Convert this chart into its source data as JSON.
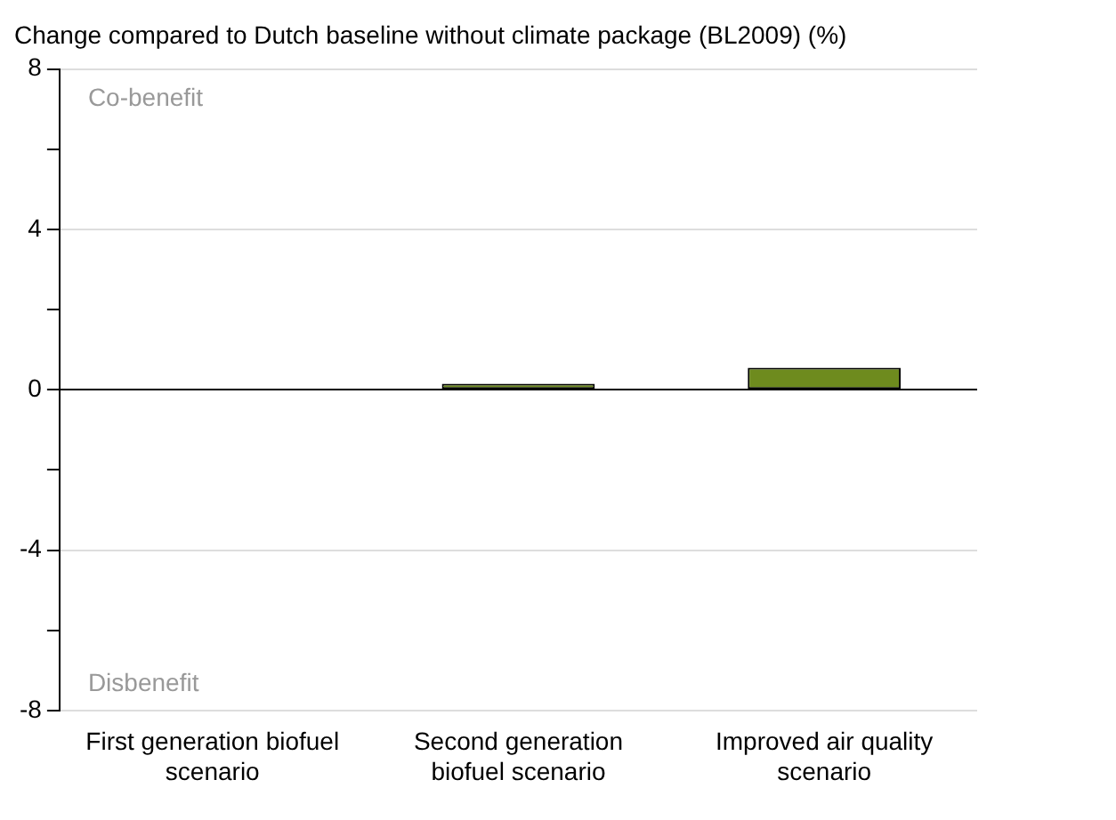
{
  "chart_data": {
    "type": "bar",
    "title": "Change compared to Dutch baseline without climate package (BL2009) (%)",
    "categories": [
      "First generation biofuel scenario",
      "Second generation biofuel scenario",
      "Improved air quality scenario"
    ],
    "values": [
      0,
      0.15,
      0.55
    ],
    "color": "#6e8b1e",
    "ylim": [
      -8,
      8
    ],
    "yticks": [
      -8,
      {
        "value": -6,
        "label": null
      },
      -4,
      {
        "value": -2,
        "label": null
      },
      0,
      {
        "value": 2,
        "label": null
      },
      4,
      {
        "value": 6,
        "label": null
      },
      8
    ],
    "grid": "y",
    "annotations": [
      "Co-benefit",
      "Disbenefit"
    ]
  }
}
